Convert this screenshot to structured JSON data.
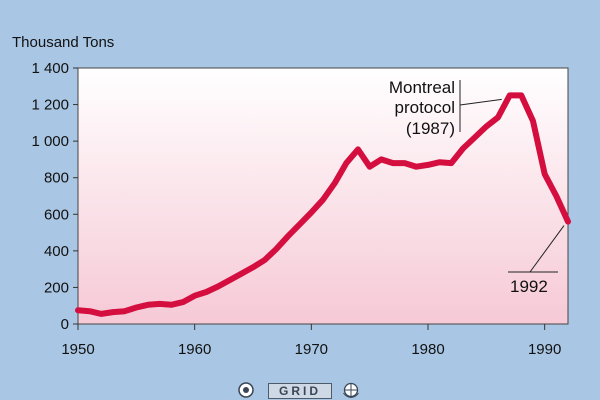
{
  "chart_data": {
    "type": "line",
    "title": "",
    "ylabel": "Thousand Tons",
    "xlabel": "",
    "xlim": [
      1950,
      1992
    ],
    "ylim": [
      0,
      1400
    ],
    "x_ticks": [
      "1950",
      "1960",
      "1970",
      "1980",
      "1990"
    ],
    "y_ticks": [
      "0",
      "200",
      "400",
      "600",
      "800",
      "1 000",
      "1 200",
      "1 400"
    ],
    "grid": false,
    "series": [
      {
        "color": "#d40e3f",
        "x": [
          1950,
          1951,
          1952,
          1953,
          1954,
          1955,
          1956,
          1957,
          1958,
          1959,
          1960,
          1961,
          1962,
          1963,
          1964,
          1965,
          1966,
          1967,
          1968,
          1969,
          1970,
          1971,
          1972,
          1973,
          1974,
          1975,
          1976,
          1977,
          1978,
          1979,
          1980,
          1981,
          1982,
          1983,
          1984,
          1985,
          1986,
          1987,
          1988,
          1989,
          1990,
          1991,
          1992
        ],
        "y": [
          75,
          70,
          55,
          65,
          70,
          90,
          105,
          110,
          105,
          120,
          155,
          175,
          205,
          240,
          275,
          310,
          350,
          410,
          480,
          545,
          610,
          680,
          770,
          880,
          955,
          860,
          900,
          880,
          880,
          860,
          870,
          885,
          880,
          960,
          1020,
          1080,
          1130,
          1250,
          1250,
          1110,
          820,
          700,
          560
        ]
      }
    ],
    "annotations": [
      {
        "lines": [
          "Montreal",
          "protocol",
          "(1987)"
        ],
        "x": 1987,
        "y": 1250
      },
      {
        "lines": [
          "1992"
        ],
        "x": 1992,
        "y": 560
      }
    ]
  },
  "logos": {
    "left_icon": "unep-emblem-icon",
    "center_text": "GRID",
    "right_icon": "un-emblem-icon"
  },
  "colors": {
    "background": "#a9c7e4",
    "plot_top": "#ffffff",
    "plot_bottom": "#f6c9d6",
    "line": "#d40e3f"
  }
}
